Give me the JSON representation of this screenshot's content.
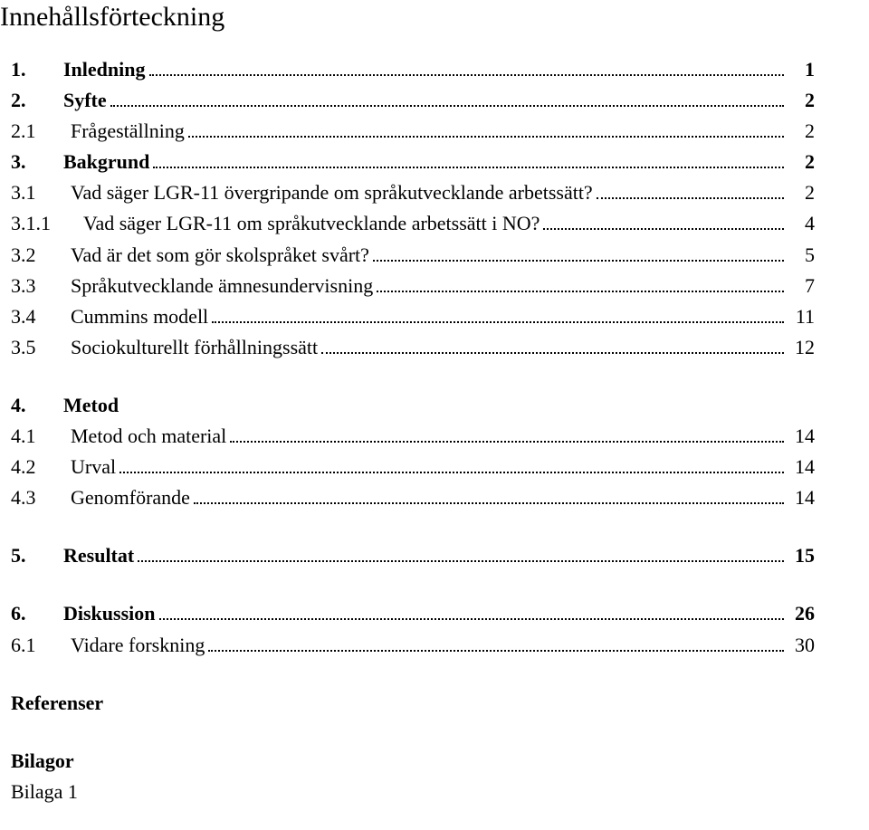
{
  "title": "Innehållsförteckning",
  "toc": [
    {
      "num": "1.",
      "label": "Inledning",
      "page": "1",
      "bold": true,
      "level": 0
    },
    {
      "num": "2.",
      "label": "Syfte",
      "page": "2",
      "bold": true,
      "level": 0
    },
    {
      "num": "2.1",
      "label": "Frågeställning",
      "page": "2",
      "bold": false,
      "level": 1
    },
    {
      "num": "3.",
      "label": "Bakgrund",
      "page": "2",
      "bold": true,
      "level": 0
    },
    {
      "num": "3.1",
      "label": "Vad säger LGR-11 övergripande om språkutvecklande arbetssätt?",
      "page": "2",
      "bold": false,
      "level": 1
    },
    {
      "num": "3.1.1",
      "label": "Vad säger LGR-11 om språkutvecklande arbetssätt i NO?",
      "page": "4",
      "bold": false,
      "level": 2
    },
    {
      "num": "3.2",
      "label": "Vad är det som gör skolspråket svårt?",
      "page": "5",
      "bold": false,
      "level": 1
    },
    {
      "num": "3.3",
      "label": "Språkutvecklande ämnesundervisning",
      "page": "7",
      "bold": false,
      "level": 1
    },
    {
      "num": "3.4",
      "label": "Cummins modell",
      "page": "11",
      "bold": false,
      "level": 1
    },
    {
      "num": "3.5",
      "label": "Sociokulturellt förhållningssätt",
      "page": "12",
      "bold": false,
      "level": 1
    }
  ],
  "metod": {
    "heading_num": "4.",
    "heading_label": "Metod",
    "items": [
      {
        "num": "4.1",
        "label": "Metod och material",
        "page": "14"
      },
      {
        "num": "4.2",
        "label": "Urval",
        "page": "14"
      },
      {
        "num": "4.3",
        "label": "Genomförande",
        "page": "14"
      }
    ]
  },
  "resultat": {
    "num": "5.",
    "label": "Resultat",
    "page": "15"
  },
  "diskussion": {
    "num": "6.",
    "label": "Diskussion",
    "page": "26"
  },
  "vidare": {
    "num": "6.1",
    "label": "Vidare forskning",
    "page": "30"
  },
  "referenser_label": "Referenser",
  "bilagor_label": "Bilagor",
  "bilaga1_label": "Bilaga 1"
}
